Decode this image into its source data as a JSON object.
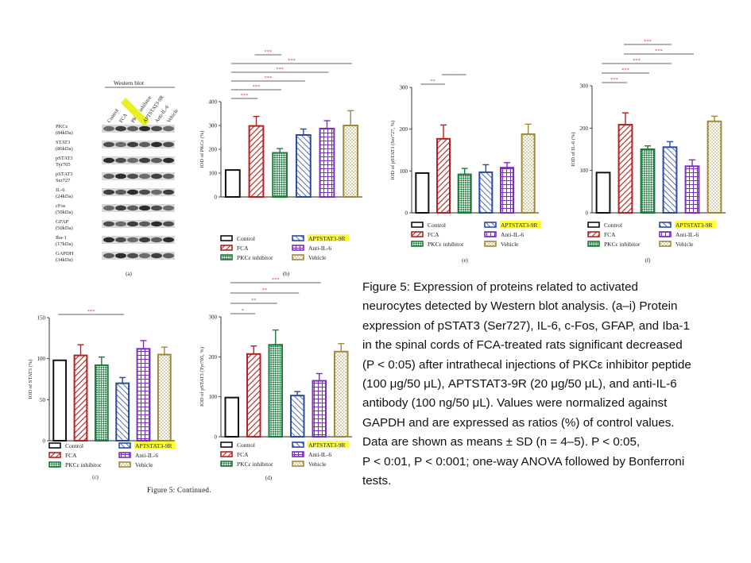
{
  "colors": {
    "control": "#111111",
    "fca": "#b22222",
    "pkc": "#1e7a3c",
    "aptstat": "#2b4ba0",
    "antiil6": "#7b2fbe",
    "vehicle": "#a08a3a",
    "sig": "#d0406a",
    "highlight": "#ffff33"
  },
  "legend": {
    "control": "Control",
    "fca": "FCA",
    "pkc": "PKCε inhibitor",
    "aptstat": "APTSTAT3-9R",
    "antiil6": "Anti-IL-6",
    "vehicle": "Vehicle"
  },
  "western_blot": {
    "title": "Western blot",
    "lanes": [
      "Control",
      "FCA",
      "PKCε inhibitor",
      "APTSTAT3-9R",
      "Anti-IL-6",
      "Vehicle"
    ],
    "rows": [
      "PKCε\n(84kDa)",
      "STAT3\n(86kDa)",
      "pSTAT3\nTyr705",
      "pSTAT3\nSer727",
      "IL-6\n(24kDa)",
      "cFos\n(50kDa)",
      "GFAP\n(50kDa)",
      "Iba-1\n(17kDa)",
      "GAPDH\n(34kDa)"
    ],
    "panel_label": "(a)"
  },
  "figure_continued": "Figure 5: Continued.",
  "caption_lines": [
    "Figure 5: Expression of proteins related to activated",
    "neurocytes detected by Western blot analysis. (a–i) Protein",
    "expression of pSTAT3 (Ser727), IL-6, c-Fos, GFAP, and Iba-1",
    "in the spinal cords of FCA-treated rats significant decreased",
    "(P < 0:05) after intrathecal injections of PKCε inhibitor peptide",
    "(100 μg/50 μL), APTSTAT3-9R (20 μg/50 μL), and anti-IL-6",
    "antibody (100 ng/50 μL). Values were normalized against",
    "GAPDH and are expressed as ratios (%) of control values.",
    "Data are shown as means ± SD (n = 4–5).  P < 0:05,",
    "P < 0:01,    P < 0:001; one-way ANOVA followed by Bonferroni",
    "tests."
  ],
  "chart_data": [
    {
      "id": "b",
      "type": "bar",
      "panel_label": "(b)",
      "ylabel": "IOD of PKCε (%)",
      "ylim": [
        0,
        400
      ],
      "yticks": [
        0,
        100,
        200,
        300,
        400
      ],
      "categories": [
        "Control",
        "FCA",
        "PKCε inhibitor",
        "APTSTAT3-9R",
        "Anti-IL-6",
        "Vehicle"
      ],
      "values": [
        113,
        298,
        185,
        260,
        287,
        300
      ],
      "errors": [
        0,
        40,
        18,
        25,
        33,
        62
      ],
      "significance": [
        {
          "from": 0,
          "to": 1,
          "label": "***"
        },
        {
          "from": 0,
          "to": 2,
          "label": "***"
        },
        {
          "from": 0,
          "to": 3,
          "label": "***"
        },
        {
          "from": 0,
          "to": 4,
          "label": "***"
        },
        {
          "from": 0,
          "to": 5,
          "label": "***"
        },
        {
          "from": 1,
          "to": 2,
          "label": "***"
        }
      ]
    },
    {
      "id": "e",
      "type": "bar",
      "panel_label": "(e)",
      "ylabel": "IOD of pSTAT3 (Ser727, %)",
      "ylim": [
        0,
        300
      ],
      "yticks": [
        0,
        100,
        200,
        300
      ],
      "categories": [
        "Control",
        "FCA",
        "PKCε inhibitor",
        "APTSTAT3-9R",
        "Anti-IL-6",
        "Vehicle"
      ],
      "values": [
        95,
        177,
        92,
        97,
        108,
        188
      ],
      "errors": [
        0,
        33,
        14,
        18,
        12,
        24
      ],
      "significance": [
        {
          "from": 0,
          "to": 1,
          "label": "**"
        },
        {
          "from": 1,
          "to": 2,
          "label": "***"
        },
        {
          "from": 1,
          "to": 3,
          "label": "***"
        },
        {
          "from": 1,
          "to": 4,
          "label": "*"
        },
        {
          "from": 0,
          "to": 5,
          "label": "***"
        }
      ]
    },
    {
      "id": "f",
      "type": "bar",
      "panel_label": "(f)",
      "ylabel": "IOD of IL-6 (%)",
      "ylim": [
        0,
        300
      ],
      "yticks": [
        0,
        100,
        200,
        300
      ],
      "categories": [
        "Control",
        "FCA",
        "PKCε inhibitor",
        "APTSTAT3-9R",
        "Anti-IL-6",
        "Vehicle"
      ],
      "values": [
        95,
        208,
        150,
        155,
        110,
        216
      ],
      "errors": [
        0,
        28,
        8,
        13,
        15,
        12
      ],
      "significance": [
        {
          "from": 0,
          "to": 1,
          "label": "***"
        },
        {
          "from": 0,
          "to": 2,
          "label": "***"
        },
        {
          "from": 0,
          "to": 3,
          "label": "***"
        },
        {
          "from": 1,
          "to": 4,
          "label": "***"
        },
        {
          "from": 1,
          "to": 3,
          "label": "***"
        },
        {
          "from": 0,
          "to": 5,
          "label": "***"
        },
        {
          "from": 1,
          "to": 5,
          "label": "***"
        }
      ]
    },
    {
      "id": "c",
      "type": "bar",
      "panel_label": "(c)",
      "ylabel": "IOD of STAT3 (%)",
      "ylim": [
        0,
        150
      ],
      "yticks": [
        0,
        50,
        100,
        150
      ],
      "categories": [
        "Control",
        "FCA",
        "PKCε inhibitor",
        "APTSTAT3-9R",
        "Anti-IL-6",
        "Vehicle"
      ],
      "values": [
        98,
        104,
        92,
        70,
        112,
        105
      ],
      "errors": [
        0,
        13,
        10,
        7,
        10,
        9
      ],
      "significance": [
        {
          "from": 0,
          "to": 3,
          "label": "***"
        },
        {
          "from": 1,
          "to": 3,
          "label": "***"
        }
      ]
    },
    {
      "id": "d",
      "type": "bar",
      "panel_label": "(d)",
      "ylabel": "IOD of pSTAT3 (Tyr705, %)",
      "ylim": [
        0,
        300
      ],
      "yticks": [
        0,
        100,
        200,
        300
      ],
      "categories": [
        "Control",
        "FCA",
        "PKCε inhibitor",
        "APTSTAT3-9R",
        "Anti-IL-6",
        "Vehicle"
      ],
      "values": [
        98,
        207,
        230,
        103,
        140,
        213
      ],
      "errors": [
        0,
        20,
        37,
        10,
        18,
        20
      ],
      "significance": [
        {
          "from": 0,
          "to": 1,
          "label": "*"
        },
        {
          "from": 0,
          "to": 2,
          "label": "**"
        },
        {
          "from": 0,
          "to": 3,
          "label": "**"
        },
        {
          "from": 0,
          "to": 4,
          "label": "***"
        },
        {
          "from": 1,
          "to": 4,
          "label": "*"
        },
        {
          "from": 1,
          "to": 5,
          "label": "*"
        }
      ]
    }
  ]
}
